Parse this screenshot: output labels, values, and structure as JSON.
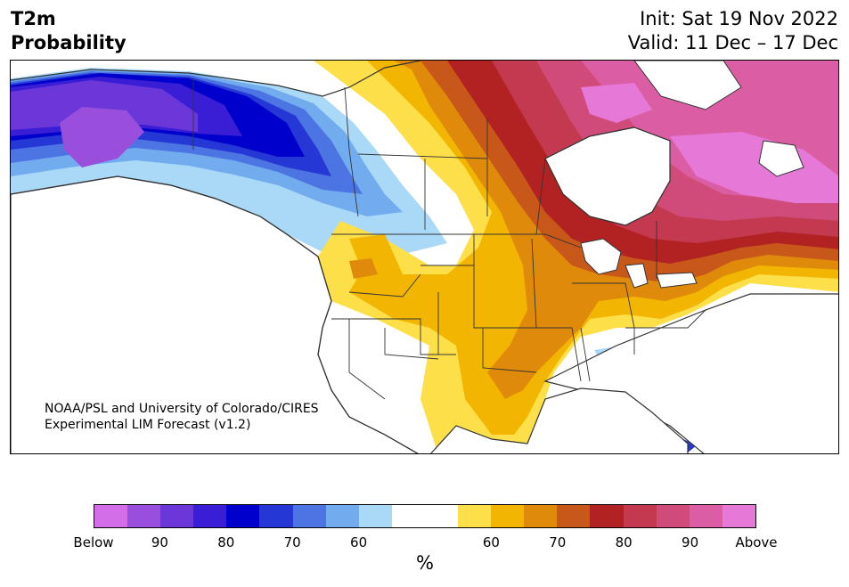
{
  "header": {
    "title_line1": "T2m",
    "title_line2": "Probability",
    "init_text": "Init: Sat 19 Nov 2022",
    "valid_text": "Valid: 11 Dec – 17 Dec"
  },
  "credit": {
    "line1": "NOAA/PSL and University of Colorado/CIRES",
    "line2": "Experimental LIM Forecast (v1.2)"
  },
  "colorbar": {
    "unit_label": "%",
    "tick_labels": [
      "Below",
      "90",
      "80",
      "70",
      "60",
      "60",
      "70",
      "80",
      "90",
      "Above"
    ],
    "colors": [
      "#d36ee8",
      "#9a4fdc",
      "#6b37d9",
      "#3a1ed6",
      "#0000cc",
      "#2538d6",
      "#4c74e2",
      "#72acef",
      "#a9d9f7",
      "#ffffff",
      "#ffffff",
      "#fddf4a",
      "#f2b602",
      "#e08a0b",
      "#c8581a",
      "#b22222",
      "#c33a50",
      "#d14b7a",
      "#db5ea5",
      "#e679d8"
    ]
  },
  "map": {
    "region": "North America",
    "colors": {
      "land": "#ffffff",
      "coast": "#333333"
    }
  }
}
